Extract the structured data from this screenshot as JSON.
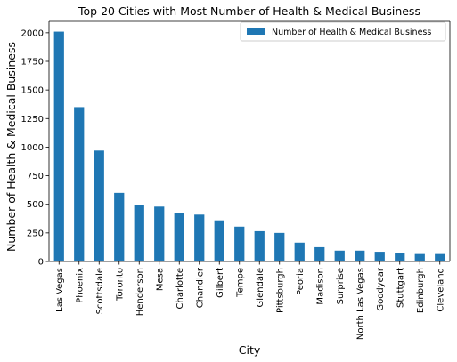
{
  "chart_data": {
    "type": "bar",
    "title": "Top 20 Cities with Most Number of Health & Medical Business",
    "xlabel": "City",
    "ylabel": "Number of Health & Medical Business",
    "ylim": [
      0,
      2100
    ],
    "yticks": [
      0,
      250,
      500,
      750,
      1000,
      1250,
      1500,
      1750,
      2000
    ],
    "grid": false,
    "legend_position": "top-right",
    "bar_color": "#1f77b4",
    "categories": [
      "Las Vegas",
      "Phoenix",
      "Scottsdale",
      "Toronto",
      "Henderson",
      "Mesa",
      "Charlotte",
      "Chandler",
      "Gilbert",
      "Tempe",
      "Glendale",
      "Pittsburgh",
      "Peoria",
      "Madison",
      "Surprise",
      "North Las Vegas",
      "Goodyear",
      "Stuttgart",
      "Edinburgh",
      "Cleveland"
    ],
    "series": [
      {
        "name": "Number of Health & Medical Business",
        "values": [
          2010,
          1350,
          970,
          600,
          490,
          480,
          420,
          410,
          360,
          305,
          265,
          250,
          165,
          125,
          95,
          95,
          85,
          70,
          65,
          65
        ]
      }
    ]
  }
}
